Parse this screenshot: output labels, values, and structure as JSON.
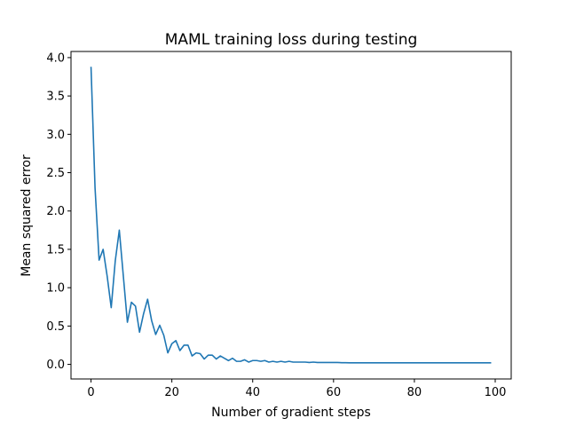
{
  "chart_data": {
    "type": "line",
    "title": "MAML training loss during testing",
    "xlabel": "Number of gradient steps",
    "ylabel": "Mean squared error",
    "xlim": [
      -4.95,
      103.95
    ],
    "ylim": [
      -0.19,
      4.08
    ],
    "xticks": [
      0,
      20,
      40,
      60,
      80,
      100
    ],
    "xtick_labels": [
      "0",
      "20",
      "40",
      "60",
      "80",
      "100"
    ],
    "yticks": [
      0.0,
      0.5,
      1.0,
      1.5,
      2.0,
      2.5,
      3.0,
      3.5,
      4.0
    ],
    "ytick_labels": [
      "0.0",
      "0.5",
      "1.0",
      "1.5",
      "2.0",
      "2.5",
      "3.0",
      "3.5",
      "4.0"
    ],
    "grid": false,
    "series": [
      {
        "color": "#1f77b4",
        "x": [
          0,
          1,
          2,
          3,
          4,
          5,
          6,
          7,
          8,
          9,
          10,
          11,
          12,
          13,
          14,
          15,
          16,
          17,
          18,
          19,
          20,
          21,
          22,
          23,
          24,
          25,
          26,
          27,
          28,
          29,
          30,
          31,
          32,
          33,
          34,
          35,
          36,
          37,
          38,
          39,
          40,
          41,
          42,
          43,
          44,
          45,
          46,
          47,
          48,
          49,
          50,
          51,
          52,
          53,
          54,
          55,
          56,
          57,
          58,
          59,
          60,
          61,
          62,
          63,
          64,
          65,
          66,
          67,
          68,
          69,
          70,
          71,
          72,
          73,
          74,
          75,
          76,
          77,
          78,
          79,
          80,
          81,
          82,
          83,
          84,
          85,
          86,
          87,
          88,
          89,
          90,
          91,
          92,
          93,
          94,
          95,
          96,
          97,
          98,
          99
        ],
        "y": [
          3.88,
          2.3,
          1.36,
          1.5,
          1.15,
          0.74,
          1.35,
          1.75,
          1.15,
          0.55,
          0.81,
          0.76,
          0.42,
          0.66,
          0.85,
          0.57,
          0.39,
          0.51,
          0.38,
          0.15,
          0.27,
          0.31,
          0.18,
          0.25,
          0.25,
          0.11,
          0.15,
          0.14,
          0.07,
          0.12,
          0.12,
          0.07,
          0.11,
          0.08,
          0.05,
          0.08,
          0.04,
          0.04,
          0.06,
          0.03,
          0.05,
          0.05,
          0.04,
          0.05,
          0.03,
          0.04,
          0.03,
          0.04,
          0.03,
          0.04,
          0.03,
          0.03,
          0.03,
          0.03,
          0.025,
          0.03,
          0.025,
          0.025,
          0.025,
          0.025,
          0.025,
          0.025,
          0.022,
          0.022,
          0.02,
          0.02,
          0.02,
          0.02,
          0.02,
          0.02,
          0.02,
          0.02,
          0.02,
          0.02,
          0.02,
          0.02,
          0.02,
          0.02,
          0.02,
          0.02,
          0.02,
          0.02,
          0.02,
          0.02,
          0.02,
          0.02,
          0.02,
          0.02,
          0.02,
          0.02,
          0.02,
          0.02,
          0.02,
          0.02,
          0.02,
          0.02,
          0.02,
          0.02,
          0.02,
          0.02
        ]
      }
    ]
  }
}
